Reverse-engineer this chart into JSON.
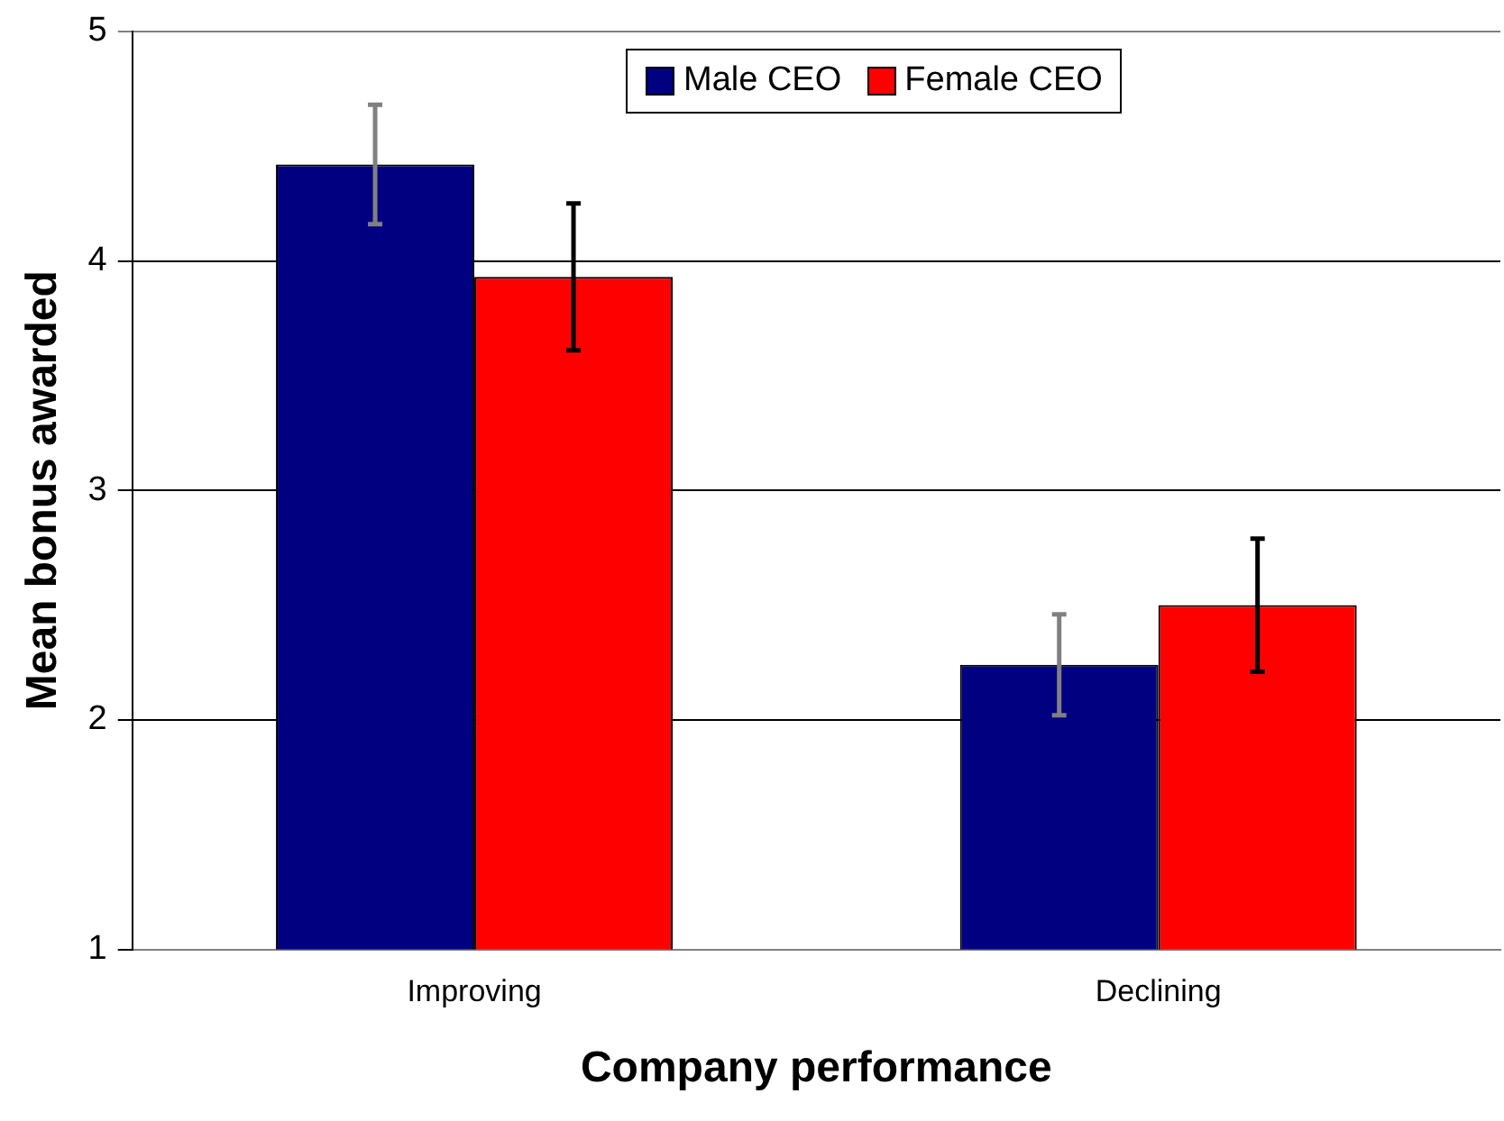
{
  "chart_data": {
    "type": "bar",
    "xlabel": "Company performance",
    "ylabel": "Mean bonus awarded",
    "categories": [
      "Improving",
      "Declining"
    ],
    "series": [
      {
        "name": "Male CEO",
        "color": "#000080",
        "values": [
          4.42,
          2.24
        ],
        "errors": [
          0.26,
          0.22
        ]
      },
      {
        "name": "Female CEO",
        "color": "#ff0000",
        "values": [
          3.93,
          2.5
        ],
        "errors": [
          0.32,
          0.29
        ]
      }
    ],
    "ylim": [
      1,
      5
    ],
    "yticks": [
      1,
      2,
      3,
      4,
      5
    ],
    "grid": "y",
    "legend": "top right"
  }
}
